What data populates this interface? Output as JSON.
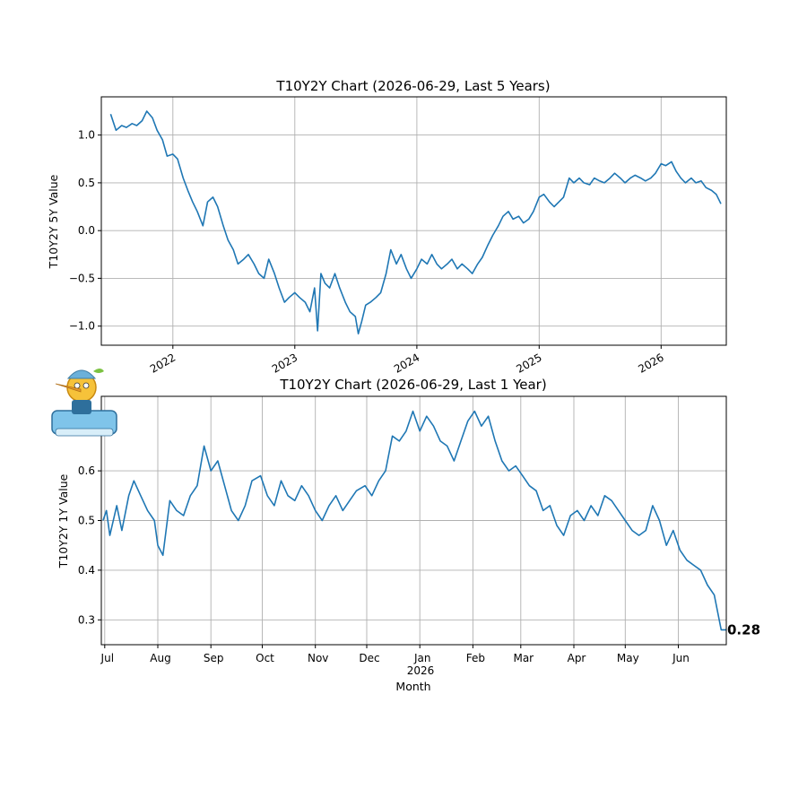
{
  "chart_data": [
    {
      "type": "line",
      "title": "T10Y2Y Chart (2026-06-29, Last 5 Years)",
      "xlabel": "",
      "ylabel": "T10Y2Y 5Y Value",
      "xlim": [
        "2021-06-01",
        "2026-07-15"
      ],
      "ylim": [
        -1.2,
        1.4
      ],
      "yticks": [
        -1.0,
        -0.5,
        0.0,
        0.5,
        1.0
      ],
      "ytick_labels": [
        "−1.0",
        "−0.5",
        "0.0",
        "0.5",
        "1.0"
      ],
      "xticks": [
        "2022-01-01",
        "2023-01-01",
        "2024-01-01",
        "2025-01-01",
        "2026-01-01"
      ],
      "xtick_labels": [
        "2022",
        "2023",
        "2024",
        "2025",
        "2026"
      ],
      "grid": true,
      "series": [
        {
          "x": [
            "2021-06-29",
            "2021-07-15",
            "2021-08-01",
            "2021-08-15",
            "2021-09-01",
            "2021-09-15",
            "2021-10-01",
            "2021-10-15",
            "2021-11-01",
            "2021-11-15",
            "2021-12-01",
            "2021-12-15",
            "2022-01-01",
            "2022-01-15",
            "2022-02-01",
            "2022-02-15",
            "2022-03-01",
            "2022-03-15",
            "2022-04-01",
            "2022-04-15",
            "2022-05-01",
            "2022-05-15",
            "2022-06-01",
            "2022-06-15",
            "2022-07-01",
            "2022-07-15",
            "2022-08-01",
            "2022-08-15",
            "2022-09-01",
            "2022-09-15",
            "2022-10-01",
            "2022-10-15",
            "2022-11-01",
            "2022-11-15",
            "2022-12-01",
            "2022-12-15",
            "2023-01-01",
            "2023-01-15",
            "2023-02-01",
            "2023-02-15",
            "2023-03-01",
            "2023-03-10",
            "2023-03-20",
            "2023-04-01",
            "2023-04-15",
            "2023-05-01",
            "2023-05-15",
            "2023-06-01",
            "2023-06-15",
            "2023-07-01",
            "2023-07-10",
            "2023-07-20",
            "2023-08-01",
            "2023-08-15",
            "2023-09-01",
            "2023-09-15",
            "2023-10-01",
            "2023-10-15",
            "2023-11-01",
            "2023-11-15",
            "2023-12-01",
            "2023-12-15",
            "2024-01-01",
            "2024-01-15",
            "2024-02-01",
            "2024-02-15",
            "2024-03-01",
            "2024-03-15",
            "2024-04-01",
            "2024-04-15",
            "2024-05-01",
            "2024-05-15",
            "2024-06-01",
            "2024-06-15",
            "2024-07-01",
            "2024-07-15",
            "2024-08-01",
            "2024-08-15",
            "2024-09-01",
            "2024-09-15",
            "2024-10-01",
            "2024-10-15",
            "2024-11-01",
            "2024-11-15",
            "2024-12-01",
            "2024-12-15",
            "2025-01-01",
            "2025-01-15",
            "2025-02-01",
            "2025-02-15",
            "2025-03-01",
            "2025-03-15",
            "2025-04-01",
            "2025-04-15",
            "2025-05-01",
            "2025-05-15",
            "2025-06-01",
            "2025-06-15",
            "2025-07-01",
            "2025-07-15",
            "2025-08-01",
            "2025-08-15",
            "2025-09-01",
            "2025-09-15",
            "2025-10-01",
            "2025-10-15",
            "2025-11-01",
            "2025-11-15",
            "2025-12-01",
            "2025-12-15",
            "2026-01-01",
            "2026-01-15",
            "2026-02-01",
            "2026-02-15",
            "2026-03-01",
            "2026-03-15",
            "2026-04-01",
            "2026-04-15",
            "2026-05-01",
            "2026-05-15",
            "2026-06-01",
            "2026-06-15",
            "2026-06-29"
          ],
          "values": [
            1.22,
            1.05,
            1.1,
            1.08,
            1.12,
            1.1,
            1.15,
            1.25,
            1.18,
            1.05,
            0.95,
            0.78,
            0.8,
            0.75,
            0.55,
            0.42,
            0.3,
            0.2,
            0.05,
            0.3,
            0.35,
            0.25,
            0.05,
            -0.1,
            -0.2,
            -0.35,
            -0.3,
            -0.25,
            -0.35,
            -0.45,
            -0.5,
            -0.3,
            -0.45,
            -0.6,
            -0.75,
            -0.7,
            -0.65,
            -0.7,
            -0.75,
            -0.85,
            -0.6,
            -1.05,
            -0.45,
            -0.55,
            -0.6,
            -0.45,
            -0.6,
            -0.75,
            -0.85,
            -0.9,
            -1.08,
            -0.95,
            -0.78,
            -0.75,
            -0.7,
            -0.65,
            -0.45,
            -0.2,
            -0.35,
            -0.25,
            -0.4,
            -0.5,
            -0.4,
            -0.3,
            -0.35,
            -0.25,
            -0.35,
            -0.4,
            -0.35,
            -0.3,
            -0.4,
            -0.35,
            -0.4,
            -0.45,
            -0.35,
            -0.28,
            -0.15,
            -0.05,
            0.05,
            0.15,
            0.2,
            0.12,
            0.15,
            0.08,
            0.12,
            0.2,
            0.35,
            0.38,
            0.3,
            0.25,
            0.3,
            0.35,
            0.55,
            0.5,
            0.55,
            0.5,
            0.48,
            0.55,
            0.52,
            0.5,
            0.55,
            0.6,
            0.55,
            0.5,
            0.55,
            0.58,
            0.55,
            0.52,
            0.55,
            0.6,
            0.7,
            0.68,
            0.72,
            0.62,
            0.55,
            0.5,
            0.55,
            0.5,
            0.52,
            0.45,
            0.42,
            0.38,
            0.28
          ]
        }
      ]
    },
    {
      "type": "line",
      "title": "T10Y2Y Chart (2026-06-29, Last 1 Year)",
      "xlabel": "Month",
      "ylabel": "T10Y2Y 1Y Value",
      "xlim": [
        "2025-06-29",
        "2026-06-29"
      ],
      "ylim": [
        0.25,
        0.75
      ],
      "yticks": [
        0.3,
        0.4,
        0.5,
        0.6
      ],
      "ytick_labels": [
        "0.3",
        "0.4",
        "0.5",
        "0.6"
      ],
      "xticks": [
        "2025-07-01",
        "2025-08-01",
        "2025-09-01",
        "2025-10-01",
        "2025-11-01",
        "2025-12-01",
        "2026-01-01",
        "2026-02-01",
        "2026-03-01",
        "2026-04-01",
        "2026-05-01",
        "2026-06-01"
      ],
      "xtick_labels": [
        "Jul",
        "Aug",
        "Sep",
        "Oct",
        "Nov",
        "Dec",
        "Jan",
        "Feb",
        "Mar",
        "Apr",
        "May",
        "Jun"
      ],
      "year_label": "2026",
      "grid": true,
      "last_value_label": "0.28",
      "series": [
        {
          "x": [
            "2025-06-30",
            "2025-07-02",
            "2025-07-04",
            "2025-07-08",
            "2025-07-11",
            "2025-07-15",
            "2025-07-18",
            "2025-07-22",
            "2025-07-26",
            "2025-07-30",
            "2025-08-01",
            "2025-08-04",
            "2025-08-08",
            "2025-08-12",
            "2025-08-16",
            "2025-08-20",
            "2025-08-24",
            "2025-08-28",
            "2025-09-01",
            "2025-09-05",
            "2025-09-09",
            "2025-09-13",
            "2025-09-17",
            "2025-09-21",
            "2025-09-25",
            "2025-09-30",
            "2025-10-04",
            "2025-10-08",
            "2025-10-12",
            "2025-10-16",
            "2025-10-20",
            "2025-10-24",
            "2025-10-28",
            "2025-11-01",
            "2025-11-05",
            "2025-11-09",
            "2025-11-13",
            "2025-11-17",
            "2025-11-21",
            "2025-11-25",
            "2025-11-30",
            "2025-12-04",
            "2025-12-08",
            "2025-12-12",
            "2025-12-16",
            "2025-12-20",
            "2025-12-24",
            "2025-12-28",
            "2026-01-01",
            "2026-01-05",
            "2026-01-09",
            "2026-01-13",
            "2026-01-17",
            "2026-01-21",
            "2026-01-25",
            "2026-01-29",
            "2026-02-02",
            "2026-02-06",
            "2026-02-10",
            "2026-02-14",
            "2026-02-18",
            "2026-02-22",
            "2026-02-26",
            "2026-03-02",
            "2026-03-06",
            "2026-03-10",
            "2026-03-14",
            "2026-03-18",
            "2026-03-22",
            "2026-03-26",
            "2026-03-30",
            "2026-04-03",
            "2026-04-07",
            "2026-04-11",
            "2026-04-15",
            "2026-04-19",
            "2026-04-23",
            "2026-04-27",
            "2026-05-01",
            "2026-05-05",
            "2026-05-09",
            "2026-05-13",
            "2026-05-17",
            "2026-05-21",
            "2026-05-25",
            "2026-05-29",
            "2026-06-02",
            "2026-06-06",
            "2026-06-10",
            "2026-06-14",
            "2026-06-18",
            "2026-06-22",
            "2026-06-26",
            "2026-06-29"
          ],
          "values": [
            0.5,
            0.52,
            0.47,
            0.53,
            0.48,
            0.55,
            0.58,
            0.55,
            0.52,
            0.5,
            0.45,
            0.43,
            0.54,
            0.52,
            0.51,
            0.55,
            0.57,
            0.65,
            0.6,
            0.62,
            0.57,
            0.52,
            0.5,
            0.53,
            0.58,
            0.59,
            0.55,
            0.53,
            0.58,
            0.55,
            0.54,
            0.57,
            0.55,
            0.52,
            0.5,
            0.53,
            0.55,
            0.52,
            0.54,
            0.56,
            0.57,
            0.55,
            0.58,
            0.6,
            0.67,
            0.66,
            0.68,
            0.72,
            0.68,
            0.71,
            0.69,
            0.66,
            0.65,
            0.62,
            0.66,
            0.7,
            0.72,
            0.69,
            0.71,
            0.66,
            0.62,
            0.6,
            0.61,
            0.59,
            0.57,
            0.56,
            0.52,
            0.53,
            0.49,
            0.47,
            0.51,
            0.52,
            0.5,
            0.53,
            0.51,
            0.55,
            0.54,
            0.52,
            0.5,
            0.48,
            0.47,
            0.48,
            0.53,
            0.5,
            0.45,
            0.48,
            0.44,
            0.42,
            0.41,
            0.4,
            0.37,
            0.35,
            0.28,
            0.28
          ]
        }
      ]
    }
  ]
}
